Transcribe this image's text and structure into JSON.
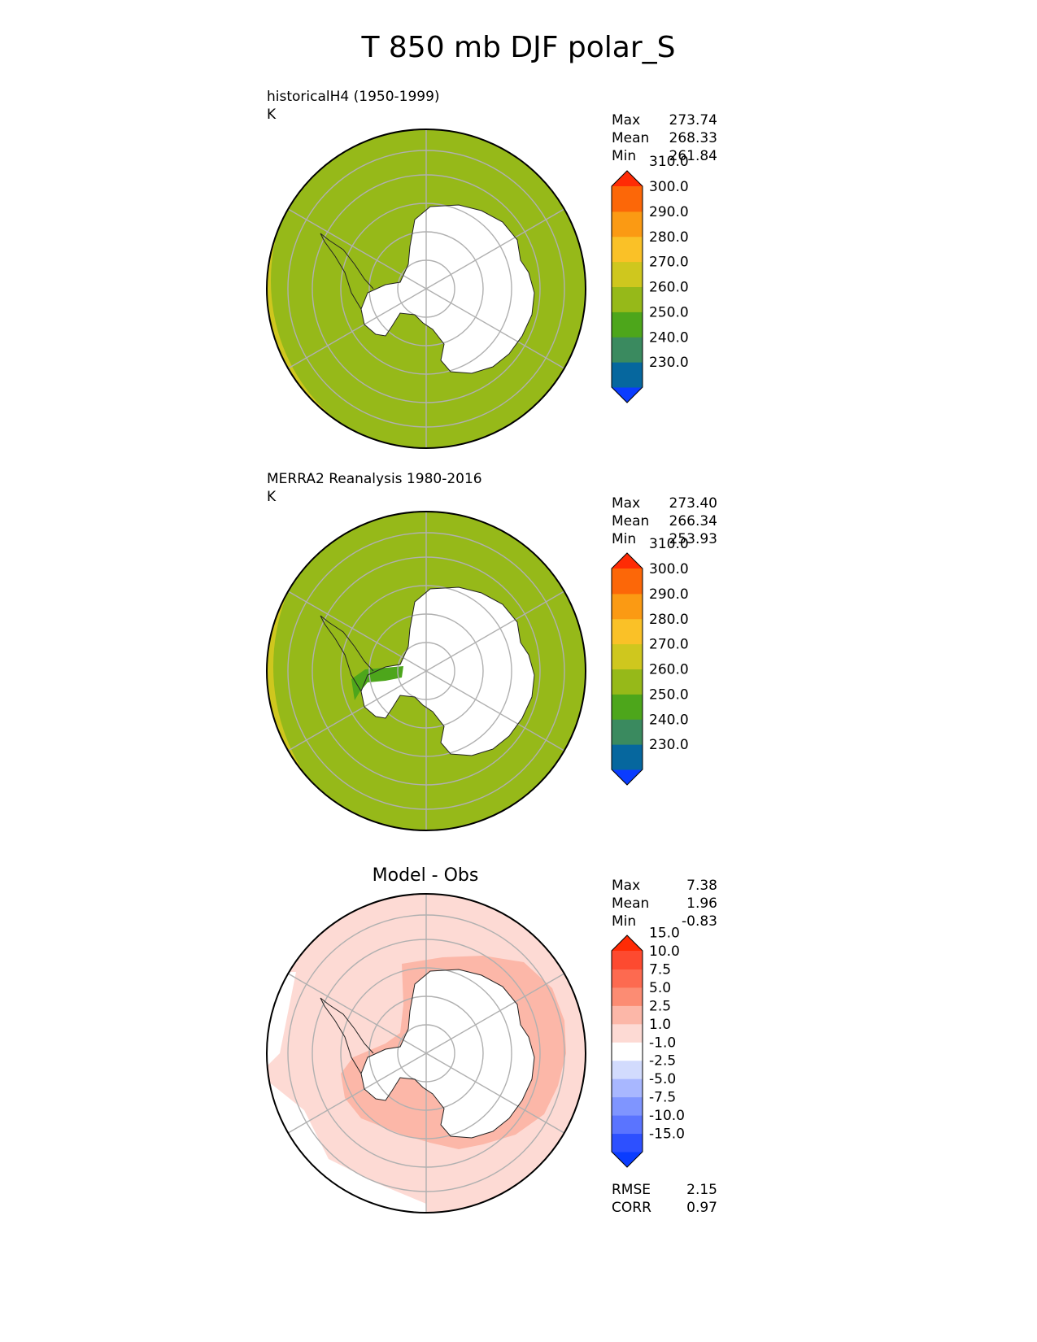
{
  "figure": {
    "title": "T 850 mb DJF polar_S"
  },
  "chart_data": [
    {
      "type": "heatmap",
      "projection": "south polar stereographic",
      "title": "historicalH4 (1950-1999)",
      "units": "K",
      "stats": {
        "Max": "273.74",
        "Mean": "268.33",
        "Min": "261.84"
      },
      "colorbar": {
        "levels": [
          "230.0",
          "240.0",
          "250.0",
          "260.0",
          "270.0",
          "280.0",
          "290.0",
          "300.0",
          "310.0"
        ],
        "colors": [
          "#0a3cff",
          "#06679e",
          "#3a8a5f",
          "#4da61b",
          "#96b919",
          "#cfc71e",
          "#fac127",
          "#fb9a13",
          "#fc6708",
          "#ff2b05"
        ],
        "extend": "both"
      }
    },
    {
      "type": "heatmap",
      "projection": "south polar stereographic",
      "title": "MERRA2 Reanalysis 1980-2016",
      "units": "K",
      "stats": {
        "Max": "273.40",
        "Mean": "266.34",
        "Min": "253.93"
      },
      "colorbar": {
        "levels": [
          "230.0",
          "240.0",
          "250.0",
          "260.0",
          "270.0",
          "280.0",
          "290.0",
          "300.0",
          "310.0"
        ],
        "colors": [
          "#0a3cff",
          "#06679e",
          "#3a8a5f",
          "#4da61b",
          "#96b919",
          "#cfc71e",
          "#fac127",
          "#fb9a13",
          "#fc6708",
          "#ff2b05"
        ],
        "extend": "both"
      }
    },
    {
      "type": "heatmap",
      "projection": "south polar stereographic",
      "title": "Model - Obs",
      "stats": {
        "Max": "7.38",
        "Mean": "1.96",
        "Min": "-0.83"
      },
      "colorbar": {
        "levels": [
          "-15.0",
          "-10.0",
          "-7.5",
          "-5.0",
          "-2.5",
          "-1.0",
          "1.0",
          "2.5",
          "5.0",
          "7.5",
          "10.0",
          "15.0"
        ],
        "colors": [
          "#0a3cff",
          "#2d50ff",
          "#5a74ff",
          "#7f95ff",
          "#a8b7ff",
          "#d2dbfd",
          "#ffffff",
          "#fddad4",
          "#fcb7a8",
          "#fc8c73",
          "#fd6a50",
          "#fd4a30",
          "#ff2b05"
        ],
        "extend": "both"
      },
      "metrics": {
        "RMSE": "2.15",
        "CORR": "0.97"
      }
    }
  ]
}
